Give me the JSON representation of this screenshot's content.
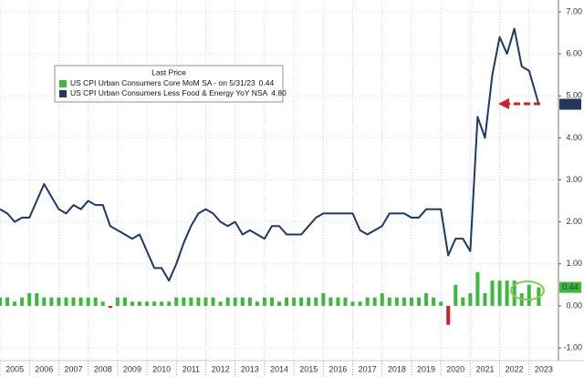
{
  "chart_data": {
    "type": "line-bar",
    "xlim": [
      2005,
      2024
    ],
    "xticks": [
      2005,
      2006,
      2007,
      2008,
      2009,
      2010,
      2011,
      2012,
      2013,
      2014,
      2015,
      2016,
      2017,
      2018,
      2019,
      2020,
      2021,
      2022,
      2023
    ],
    "ylim": [
      -1,
      7
    ],
    "yticks": [
      {
        "value": -1,
        "label": "-1.00"
      },
      {
        "value": 0,
        "label": "0.00"
      },
      {
        "value": 1,
        "label": "1.00"
      },
      {
        "value": 2,
        "label": "2.00"
      },
      {
        "value": 3,
        "label": "3.00"
      },
      {
        "value": 4,
        "label": "4.00"
      },
      {
        "value": 5,
        "label": "5.00"
      },
      {
        "value": 6,
        "label": "6.00"
      },
      {
        "value": 7,
        "label": "7.00"
      }
    ],
    "grid": true,
    "legend_title": "Last Price",
    "x": [
      2005,
      2005.25,
      2005.5,
      2005.75,
      2006,
      2006.25,
      2006.5,
      2006.75,
      2007,
      2007.25,
      2007.5,
      2007.75,
      2008,
      2008.25,
      2008.5,
      2008.75,
      2009,
      2009.25,
      2009.5,
      2009.75,
      2010,
      2010.25,
      2010.5,
      2010.75,
      2011,
      2011.25,
      2011.5,
      2011.75,
      2012,
      2012.25,
      2012.5,
      2012.75,
      2013,
      2013.25,
      2013.5,
      2013.75,
      2014,
      2014.25,
      2014.5,
      2014.75,
      2015,
      2015.25,
      2015.5,
      2015.75,
      2016,
      2016.25,
      2016.5,
      2016.75,
      2017,
      2017.25,
      2017.5,
      2017.75,
      2018,
      2018.25,
      2018.5,
      2018.75,
      2019,
      2019.25,
      2019.5,
      2019.75,
      2020,
      2020.25,
      2020.5,
      2020.75,
      2021,
      2021.25,
      2021.5,
      2021.75,
      2022,
      2022.25,
      2022.5,
      2022.75,
      2023,
      2023.33
    ],
    "series": [
      {
        "name": "US CPI Urban Consumers Core MoM SA -  on 5/31/23",
        "last_price": "0.44",
        "kind": "bar",
        "color": "#3cb83c",
        "negative_color": "#d0202a",
        "values": [
          0.2,
          0.2,
          0.1,
          0.2,
          0.3,
          0.3,
          0.2,
          0.2,
          0.2,
          0.2,
          0.2,
          0.2,
          0.2,
          0.2,
          0.1,
          -0.05,
          0.2,
          0.2,
          0.1,
          0.1,
          0.1,
          0.1,
          0.1,
          0.1,
          0.2,
          0.2,
          0.2,
          0.2,
          0.2,
          0.2,
          0.1,
          0.2,
          0.2,
          0.2,
          0.2,
          0.1,
          0.2,
          0.2,
          0.1,
          0.2,
          0.2,
          0.2,
          0.2,
          0.2,
          0.3,
          0.2,
          0.2,
          0.2,
          0.1,
          0.1,
          0.2,
          0.2,
          0.3,
          0.2,
          0.2,
          0.2,
          0.2,
          0.2,
          0.3,
          0.2,
          0.1,
          -0.45,
          0.5,
          0.2,
          0.3,
          0.8,
          0.3,
          0.6,
          0.6,
          0.6,
          0.6,
          0.3,
          0.5,
          0.44
        ]
      },
      {
        "name": "US CPI Urban Consumers Less Food & Energy YoY NSA",
        "last_price": "4.80",
        "kind": "line",
        "color": "#1f3864",
        "values": [
          2.3,
          2.2,
          2.0,
          2.1,
          2.1,
          2.5,
          2.9,
          2.6,
          2.3,
          2.2,
          2.4,
          2.3,
          2.5,
          2.4,
          2.4,
          1.9,
          1.8,
          1.7,
          1.6,
          1.7,
          1.3,
          0.9,
          0.9,
          0.6,
          1.0,
          1.5,
          1.9,
          2.2,
          2.3,
          2.2,
          2.0,
          1.9,
          2.0,
          1.7,
          1.8,
          1.7,
          1.6,
          1.9,
          1.9,
          1.7,
          1.7,
          1.7,
          1.9,
          2.1,
          2.2,
          2.2,
          2.2,
          2.2,
          2.2,
          1.8,
          1.7,
          1.8,
          1.9,
          2.2,
          2.2,
          2.2,
          2.1,
          2.1,
          2.3,
          2.3,
          2.3,
          1.2,
          1.6,
          1.6,
          1.3,
          4.5,
          4.0,
          5.5,
          6.4,
          6.0,
          6.6,
          5.7,
          5.6,
          4.8
        ]
      }
    ]
  }
}
